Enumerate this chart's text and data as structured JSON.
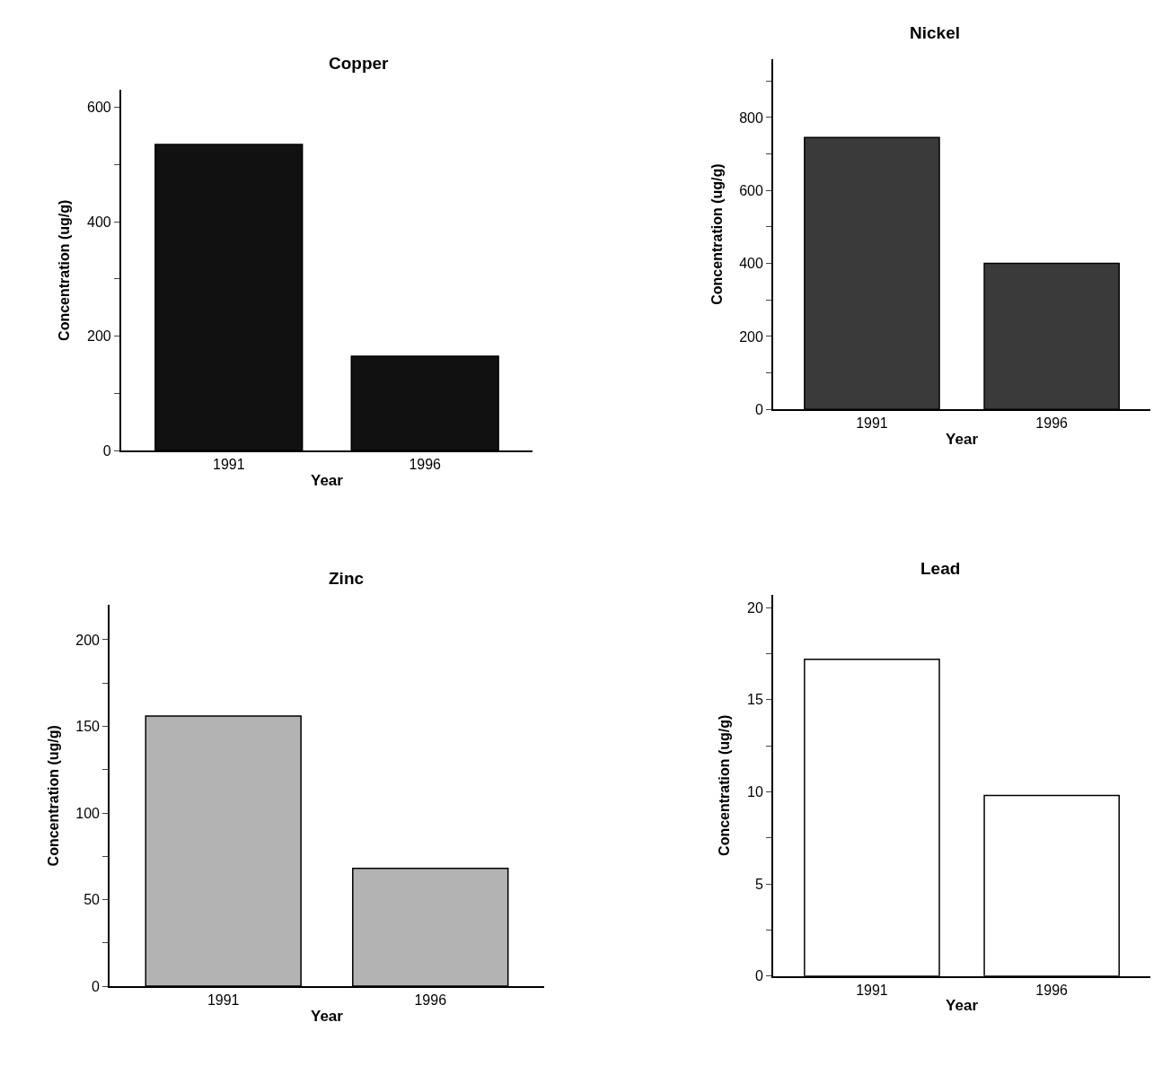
{
  "chart_data": [
    {
      "type": "bar",
      "title": "Copper",
      "xlabel": "Year",
      "ylabel": "Concentration (ug/g)",
      "categories": [
        "1991",
        "1996"
      ],
      "values": [
        535,
        165
      ],
      "color": "#111111",
      "ylim": [
        0,
        630
      ],
      "yticks": [
        0,
        {
          "value": 100,
          "label": null
        },
        200,
        {
          "value": 300,
          "label": null
        },
        400,
        {
          "value": 500,
          "label": null
        },
        600
      ]
    },
    {
      "type": "bar",
      "title": "Nickel",
      "xlabel": "Year",
      "ylabel": "Concentration (ug/g)",
      "categories": [
        "1991",
        "1996"
      ],
      "values": [
        745,
        400
      ],
      "color": "#3a3a3a",
      "ylim": [
        0,
        960
      ],
      "yticks": [
        0,
        {
          "value": 100,
          "label": null
        },
        200,
        {
          "value": 300,
          "label": null
        },
        400,
        {
          "value": 500,
          "label": null
        },
        600,
        {
          "value": 700,
          "label": null
        },
        800,
        {
          "value": 900,
          "label": null
        }
      ]
    },
    {
      "type": "bar",
      "title": "Zinc",
      "xlabel": "Year",
      "ylabel": "Concentration (ug/g)",
      "categories": [
        "1991",
        "1996"
      ],
      "values": [
        156,
        68
      ],
      "color": "#b3b3b3",
      "ylim": [
        0,
        220
      ],
      "yticks": [
        0,
        {
          "value": 25,
          "label": null
        },
        50,
        {
          "value": 75,
          "label": null
        },
        100,
        {
          "value": 125,
          "label": null
        },
        150,
        {
          "value": 175,
          "label": null
        },
        200
      ]
    },
    {
      "type": "bar",
      "title": "Lead",
      "xlabel": "Year",
      "ylabel": "Concentration (ug/g)",
      "categories": [
        "1991",
        "1996"
      ],
      "values": [
        17.2,
        9.8
      ],
      "color": "#ffffff",
      "ylim": [
        0,
        20.7
      ],
      "yticks": [
        0,
        {
          "value": 2.5,
          "label": null
        },
        5,
        {
          "value": 7.5,
          "label": null
        },
        10,
        {
          "value": 12.5,
          "label": null
        },
        15,
        {
          "value": 17.5,
          "label": null
        },
        20
      ]
    }
  ]
}
